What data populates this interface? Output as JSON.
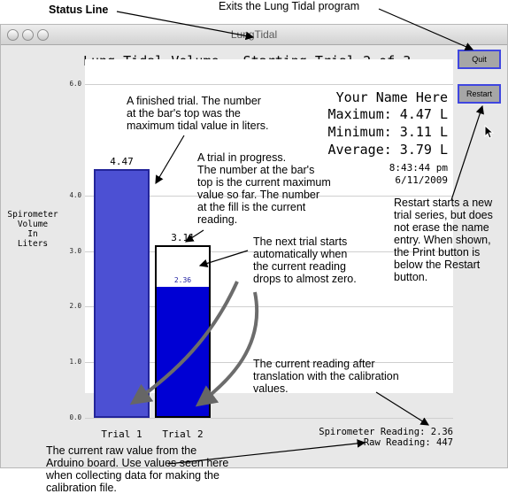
{
  "window": {
    "title": "LungTidal"
  },
  "app": {
    "heading": "Lung Tidal Volume – Starting Trial 2 of 3",
    "quit_label": "Quit",
    "restart_label": "Restart",
    "name": "Your Name Here",
    "maximum": "Maximum: 4.47 L",
    "minimum": "Minimum: 3.11 L",
    "average": "Average: 3.79 L",
    "time": "8:43:44 pm",
    "date": "6/11/2009",
    "ylabel": [
      "Spirometer",
      "Volume",
      "In",
      "Liters"
    ],
    "spirometer_reading": "Spirometer Reading: 2.36",
    "raw_reading": "Raw Reading: 447"
  },
  "chart_data": {
    "type": "bar",
    "categories": [
      "Trial 1",
      "Trial 2"
    ],
    "max_values": [
      4.47,
      3.11
    ],
    "max_labels": [
      "4.47",
      "3.11"
    ],
    "current_values": [
      4.47,
      2.36
    ],
    "current_labels": [
      "",
      "2.36"
    ],
    "ylim": [
      0,
      6
    ],
    "yticks": [
      "0.0",
      "1.0",
      "2.0",
      "3.0",
      "4.0",
      "6.0"
    ],
    "ytick_values": [
      0,
      1,
      2,
      3,
      4,
      6
    ],
    "colors": {
      "trial1": "#4c50d3",
      "trial2_fill": "#0000d4",
      "grid": "#cfcfcf"
    }
  },
  "annotations": {
    "status_line": "Status Line",
    "quit_note": "Exits the Lung Tidal program",
    "finished_trial": [
      "A finished trial. The number",
      "at the bar's top was the",
      "maximum tidal value in liters."
    ],
    "in_progress": [
      "A trial in progress.",
      "The number at the bar's",
      "top is the current maximum",
      "value so far. The number",
      "at the fill is the current",
      "reading."
    ],
    "next_trial": [
      "The next trial starts",
      "automatically when",
      "the current reading",
      "drops to almost zero."
    ],
    "restart_note": [
      "Restart starts a new",
      "trial series, but does",
      "not erase the name",
      "entry. When shown,",
      "the Print button is",
      "below the Restart",
      "button."
    ],
    "current_reading_note": [
      "The current reading after",
      "translation with the calibration",
      "values."
    ],
    "raw_note": [
      "The current raw value from the",
      "Arduino board. Use values seen here",
      "when collecting data for making the",
      "calibration file."
    ]
  }
}
